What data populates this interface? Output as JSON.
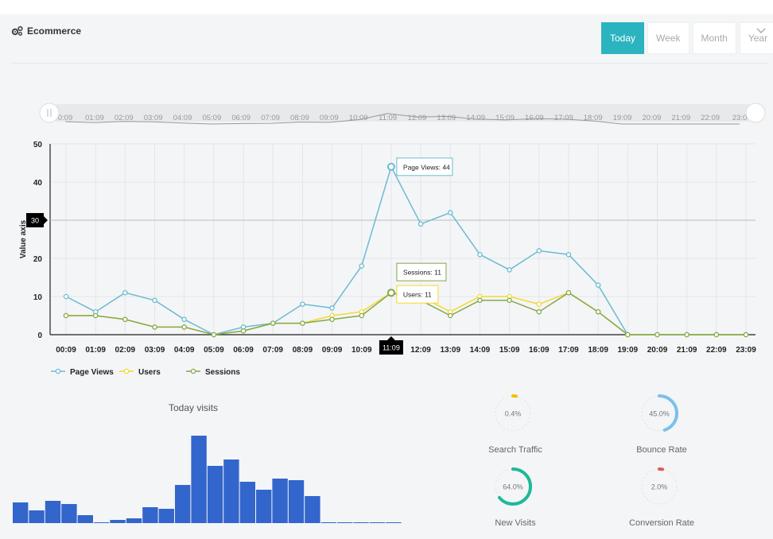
{
  "header": {
    "title": "Ecommerce",
    "icon": "gears-icon"
  },
  "tabs": [
    {
      "label": "Today",
      "active": true
    },
    {
      "label": "Week",
      "active": false
    },
    {
      "label": "Month",
      "active": false
    },
    {
      "label": "Year",
      "active": false
    }
  ],
  "colors": {
    "accent": "#2bb3c0",
    "page_views": "#6bbbd1",
    "users": "#f2d92e",
    "sessions": "#84a94c",
    "bars": "#3366cc"
  },
  "chart_data": [
    {
      "type": "line",
      "x": [
        "00:09",
        "01:09",
        "02:09",
        "03:09",
        "04:09",
        "05:09",
        "06:09",
        "07:09",
        "08:09",
        "09:09",
        "10:09",
        "11:09",
        "12:09",
        "13:09",
        "14:09",
        "15:09",
        "16:09",
        "17:09",
        "18:09",
        "19:09",
        "20:09",
        "21:09",
        "22:09",
        "23:09"
      ],
      "series": [
        {
          "name": "Page Views",
          "values": [
            10,
            6,
            11,
            9,
            4,
            0,
            2,
            3,
            8,
            7,
            18,
            44,
            29,
            32,
            21,
            17,
            22,
            21,
            13,
            0,
            0,
            0,
            0,
            0
          ]
        },
        {
          "name": "Users",
          "values": [
            5,
            5,
            4,
            2,
            2,
            0,
            1,
            3,
            3,
            5,
            6,
            11,
            10,
            6,
            10,
            10,
            8,
            11,
            6,
            0,
            0,
            0,
            0,
            0
          ]
        },
        {
          "name": "Sessions",
          "values": [
            5,
            5,
            4,
            2,
            2,
            0,
            1,
            3,
            3,
            4,
            5,
            11,
            9,
            5,
            9,
            9,
            6,
            11,
            6,
            0,
            0,
            0,
            0,
            0
          ]
        }
      ],
      "ylabel": "Value axis",
      "ylim": [
        0,
        50
      ],
      "yticks": [
        0,
        10,
        20,
        30,
        40,
        50
      ],
      "cursor": {
        "x_label": "11:09",
        "y_label": "30",
        "y_value": 30,
        "x_index": 11
      },
      "tooltips": [
        {
          "text": "Page Views: 44"
        },
        {
          "text": "Sessions: 11"
        },
        {
          "text": "Users: 11"
        }
      ],
      "scrollbar_labels": [
        "0:09",
        "01:09",
        "02:09",
        "03:09",
        "04:09",
        "05:09",
        "06:09",
        "07:09",
        "08:09",
        "09:09",
        "10:09",
        "11:09",
        "12:09",
        "13:09",
        "14:09",
        "15:09",
        "16:09",
        "17:09",
        "18:09",
        "19:09",
        "20:09",
        "21:09",
        "22:09",
        "23:0"
      ],
      "legend": [
        "Page Views",
        "Users",
        "Sessions"
      ],
      "legend_position": "bottom-left",
      "grid": true
    },
    {
      "type": "bar",
      "title": "Today visits",
      "values": [
        13,
        8,
        14,
        12,
        5,
        0.5,
        2,
        3,
        10,
        9,
        24,
        55,
        36,
        40,
        26,
        21,
        28,
        27,
        17,
        0.5,
        0.5,
        0.5,
        0.5,
        0.5
      ],
      "grid": false
    }
  ],
  "gauges": [
    {
      "label": "Search Traffic",
      "value": "0.4%",
      "fraction": 0.004,
      "color": "#f2c200"
    },
    {
      "label": "Bounce Rate",
      "value": "45.0%",
      "fraction": 0.45,
      "color": "#7cc0ea"
    },
    {
      "label": "New Visits",
      "value": "64.0%",
      "fraction": 0.64,
      "color": "#1fb89a"
    },
    {
      "label": "Conversion Rate",
      "value": "2.0%",
      "fraction": 0.02,
      "color": "#e05a5a"
    }
  ]
}
